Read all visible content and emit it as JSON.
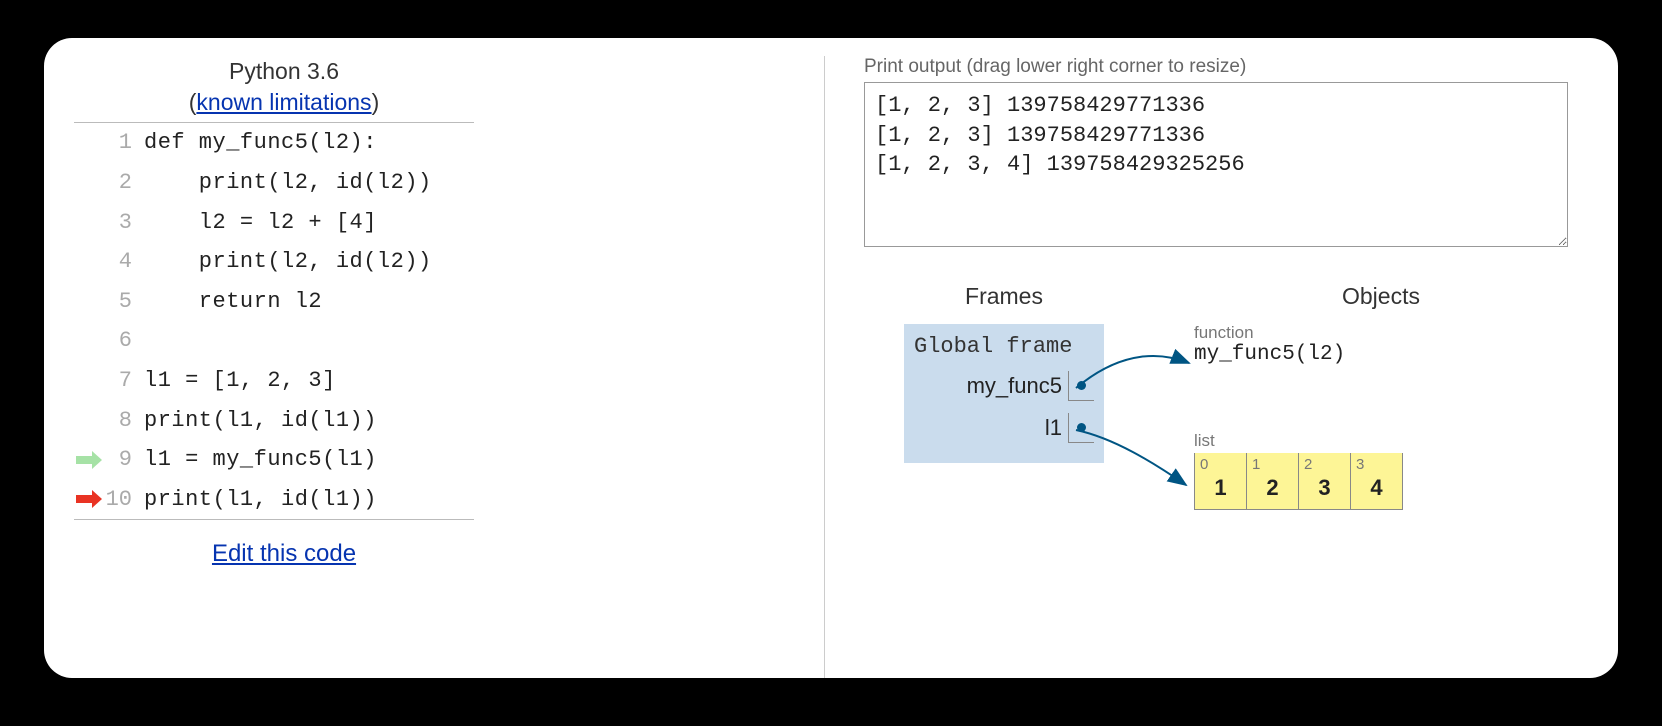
{
  "header": {
    "language": "Python 3.6",
    "limitations_link_text": "known limitations"
  },
  "code": {
    "lines": [
      "def my_func5(l2):",
      "    print(l2, id(l2))",
      "    l2 = l2 + [4]",
      "    print(l2, id(l2))",
      "    return l2",
      "",
      "l1 = [1, 2, 3]",
      "print(l1, id(l1))",
      "l1 = my_func5(l1)",
      "print(l1, id(l1))"
    ],
    "prev_arrow_line": 9,
    "curr_arrow_line": 10
  },
  "edit_link_text": "Edit this code",
  "output": {
    "label": "Print output (drag lower right corner to resize)",
    "text": "[1, 2, 3] 139758429771336\n[1, 2, 3] 139758429771336\n[1, 2, 3, 4] 139758429325256"
  },
  "frames": {
    "header": "Frames",
    "global_title": "Global frame",
    "vars": [
      {
        "name": "my_func5"
      },
      {
        "name": "l1"
      }
    ]
  },
  "objects": {
    "header": "Objects",
    "func": {
      "type_label": "function",
      "signature": "my_func5(l2)"
    },
    "list": {
      "type_label": "list",
      "cells": [
        {
          "idx": "0",
          "val": "1"
        },
        {
          "idx": "1",
          "val": "2"
        },
        {
          "idx": "2",
          "val": "3"
        },
        {
          "idx": "3",
          "val": "4"
        }
      ]
    }
  },
  "colors": {
    "page_bg": "#000000",
    "card_bg": "#ffffff",
    "link": "#0634b0",
    "lineno": "#aaaaaa",
    "code_text": "#222222",
    "prev_arrow": "#a6e2a6",
    "curr_arrow": "#e93323",
    "frame_bg": "#cadced",
    "list_cell_bg": "#fdf596",
    "pointer": "#005583",
    "muted": "#777777",
    "border": "#999999"
  }
}
